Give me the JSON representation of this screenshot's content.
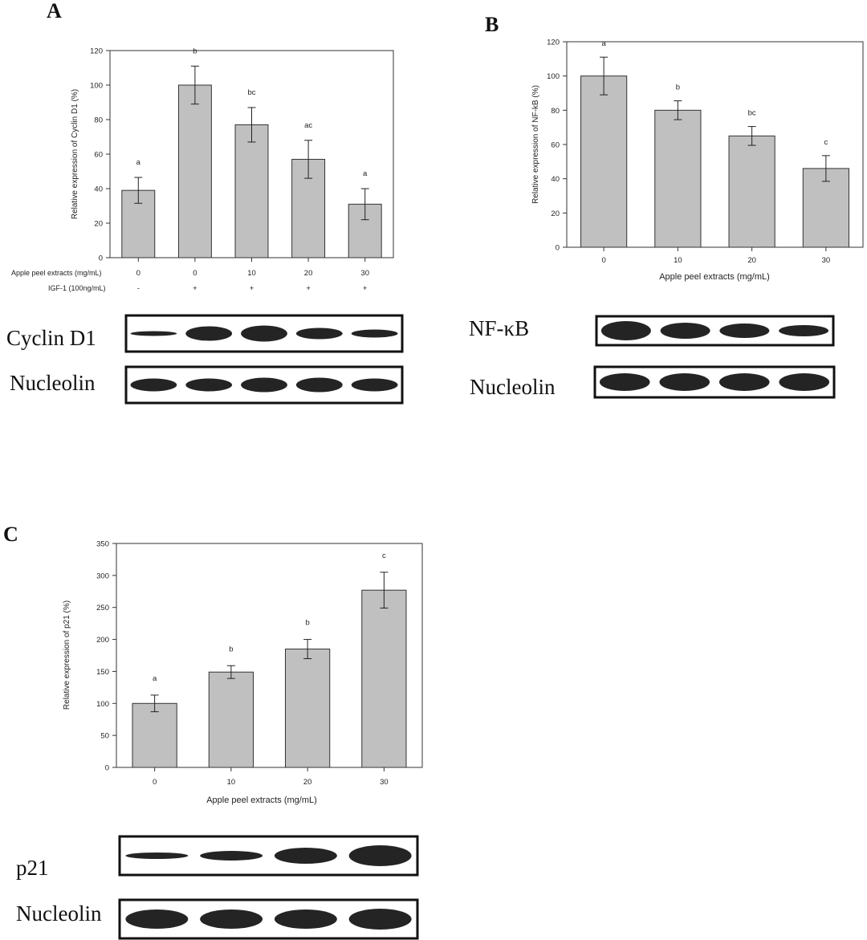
{
  "panels": {
    "A": {
      "letter": "A",
      "chart_data": {
        "type": "bar",
        "categories": [
          "0",
          "0",
          "10",
          "20",
          "30"
        ],
        "values": [
          39,
          100,
          77,
          57,
          31
        ],
        "errors": [
          7.5,
          11,
          10,
          11,
          9
        ],
        "significance": [
          "a",
          "b",
          "bc",
          "ac",
          "a"
        ],
        "ylabel": "Relative expression of Cyclin D1 (%)",
        "ylim": [
          0,
          120
        ],
        "yticks": [
          "0",
          "20",
          "40",
          "60",
          "80",
          "100",
          "120"
        ],
        "row_labels": [
          "Apple peel extracts (mg/mL)",
          "IGF-1 (100ng/mL)"
        ],
        "igf_row": [
          "-",
          "+",
          "+",
          "+",
          "+"
        ],
        "bar_color": "#c0c0c0"
      },
      "blots": [
        "Cyclin D1",
        "Nucleolin"
      ]
    },
    "B": {
      "letter": "B",
      "chart_data": {
        "type": "bar",
        "categories": [
          "0",
          "10",
          "20",
          "30"
        ],
        "values": [
          100,
          80,
          65,
          46
        ],
        "errors": [
          11,
          5.5,
          5.5,
          7.5
        ],
        "significance": [
          "a",
          "b",
          "bc",
          "c"
        ],
        "ylabel": "Relative expression of NF-kB (%)",
        "xlabel": "Apple peel extracts (mg/mL)",
        "ylim": [
          0,
          120
        ],
        "yticks": [
          "0",
          "20",
          "40",
          "60",
          "80",
          "100",
          "120"
        ],
        "bar_color": "#c0c0c0"
      },
      "blots": [
        "NF-κB",
        "Nucleolin"
      ]
    },
    "C": {
      "letter": "C",
      "chart_data": {
        "type": "bar",
        "categories": [
          "0",
          "10",
          "20",
          "30"
        ],
        "values": [
          100,
          149,
          185,
          277
        ],
        "errors": [
          13,
          10,
          15,
          28
        ],
        "significance": [
          "a",
          "b",
          "b",
          "c"
        ],
        "ylabel": "Relative expression of p21 (%)",
        "xlabel": "Apple peel extracts (mg/mL)",
        "ylim": [
          0,
          350
        ],
        "yticks": [
          "0",
          "50",
          "100",
          "150",
          "200",
          "250",
          "300",
          "350"
        ],
        "bar_color": "#c0c0c0"
      },
      "blots": [
        "p21",
        "Nucleolin"
      ]
    }
  }
}
